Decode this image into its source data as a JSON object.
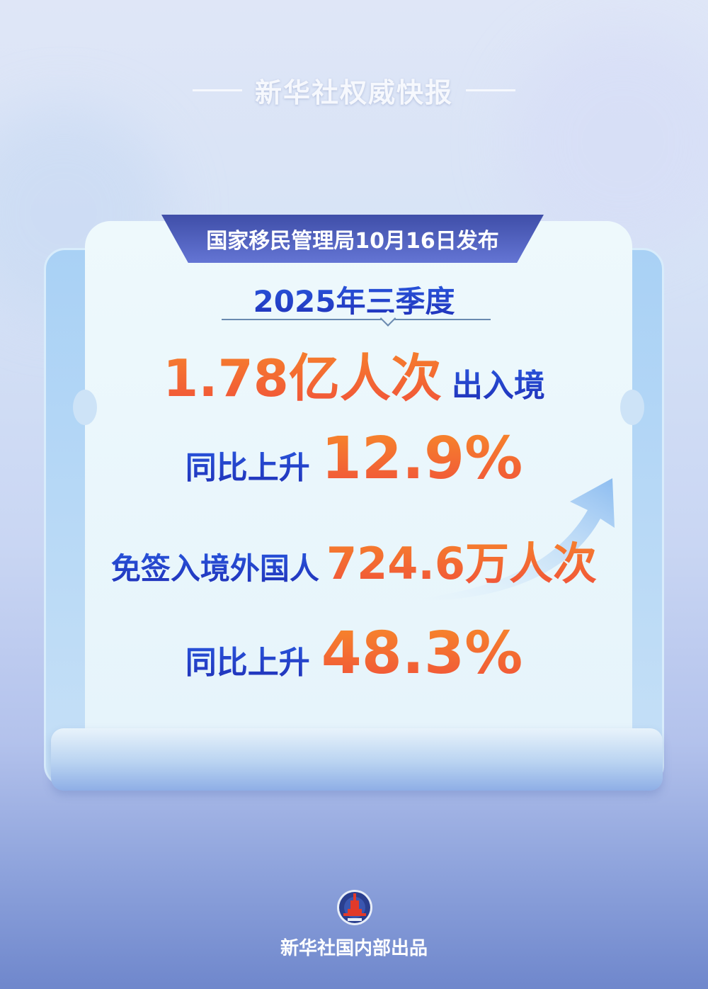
{
  "header": {
    "title": "新华社权威快报"
  },
  "tab": {
    "label": "国家移民管理局10月16日发布"
  },
  "period": "2025年三季度",
  "stat1": {
    "value": "1.78亿人次",
    "label": "出入境"
  },
  "stat1_change": {
    "label": "同比上升",
    "value": "12.9%"
  },
  "stat2": {
    "label": "免签入境外国人",
    "value": "724.6万人次"
  },
  "stat2_change": {
    "label": "同比上升",
    "value": "48.3%"
  },
  "footer": {
    "text": "新华社国内部出品",
    "logo": "xinhua-logo"
  },
  "colors": {
    "accent_blue": "#2336c4",
    "accent_orange": "#f0503a",
    "tab": "#4a5ab8"
  }
}
